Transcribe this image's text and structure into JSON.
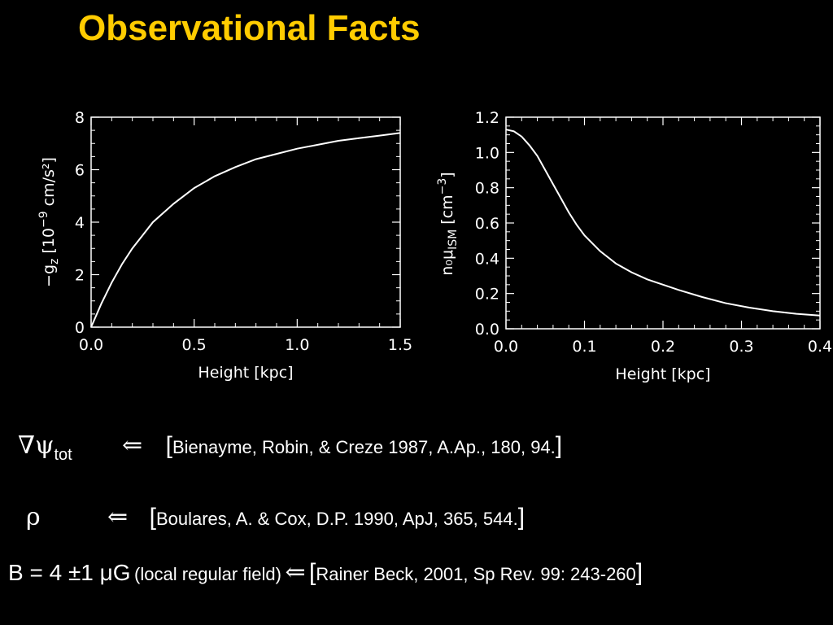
{
  "title": "Observational Facts",
  "colors": {
    "title": "#ffcc00",
    "background": "#000000",
    "foreground": "#ffffff"
  },
  "chart_data": [
    {
      "type": "line",
      "xlabel": "Height [kpc]",
      "ylabel_parts": {
        "pre": "−g",
        "sub": "z",
        "mid": " [10",
        "sup": "−9",
        "post": " cm/s²]"
      },
      "xlim": [
        0.0,
        1.5
      ],
      "ylim": [
        0,
        8
      ],
      "xticks": [
        "0.0",
        "0.5",
        "1.0",
        "1.5"
      ],
      "yticks": [
        "0",
        "2",
        "4",
        "6",
        "8"
      ],
      "series": [
        {
          "x": [
            0.0,
            0.05,
            0.1,
            0.15,
            0.2,
            0.25,
            0.3,
            0.4,
            0.5,
            0.6,
            0.7,
            0.8,
            0.9,
            1.0,
            1.1,
            1.2,
            1.3,
            1.4,
            1.5
          ],
          "values": [
            0.0,
            0.9,
            1.7,
            2.4,
            3.0,
            3.5,
            4.0,
            4.7,
            5.3,
            5.75,
            6.1,
            6.4,
            6.6,
            6.8,
            6.95,
            7.1,
            7.2,
            7.3,
            7.4
          ]
        }
      ]
    },
    {
      "type": "line",
      "xlabel": "Height [kpc]",
      "ylabel_parts": {
        "pre": "n₀μ",
        "sub": "ISM",
        "post": " [cm",
        "sup": "−3",
        "end": "]"
      },
      "xlim": [
        0.0,
        0.4
      ],
      "ylim": [
        0.0,
        1.2
      ],
      "xticks": [
        "0.0",
        "0.1",
        "0.2",
        "0.3",
        "0.4"
      ],
      "yticks": [
        "0.0",
        "0.2",
        "0.4",
        "0.6",
        "0.8",
        "1.0",
        "1.2"
      ],
      "series": [
        {
          "x": [
            0.0,
            0.01,
            0.02,
            0.03,
            0.04,
            0.05,
            0.06,
            0.07,
            0.08,
            0.09,
            0.1,
            0.12,
            0.14,
            0.16,
            0.18,
            0.2,
            0.22,
            0.25,
            0.28,
            0.31,
            0.34,
            0.37,
            0.4
          ],
          "values": [
            1.13,
            1.12,
            1.09,
            1.04,
            0.98,
            0.9,
            0.82,
            0.74,
            0.66,
            0.59,
            0.53,
            0.44,
            0.37,
            0.32,
            0.28,
            0.25,
            0.22,
            0.18,
            0.145,
            0.12,
            0.1,
            0.085,
            0.075
          ]
        }
      ]
    }
  ],
  "equations": [
    {
      "symbol": "∇ψ",
      "sub": "tot",
      "arrow": "⇐",
      "open": "[",
      "ref": "Bienayme, Robin, & Creze 1987, A.Ap., 180, 94.",
      "close": "]"
    },
    {
      "symbol": "ρ",
      "arrow": "⇐",
      "open": "[",
      "ref": "Boulares, A. & Cox, D.P. 1990, ApJ, 365, 544.",
      "close": "]"
    },
    {
      "symbol": "B = 4 ±1 μG",
      "note": "(local regular field)",
      "arrow": "⇐",
      "open": "[",
      "ref": "Rainer Beck, 2001, Sp Rev. 99: 243-260",
      "close": "]"
    }
  ]
}
